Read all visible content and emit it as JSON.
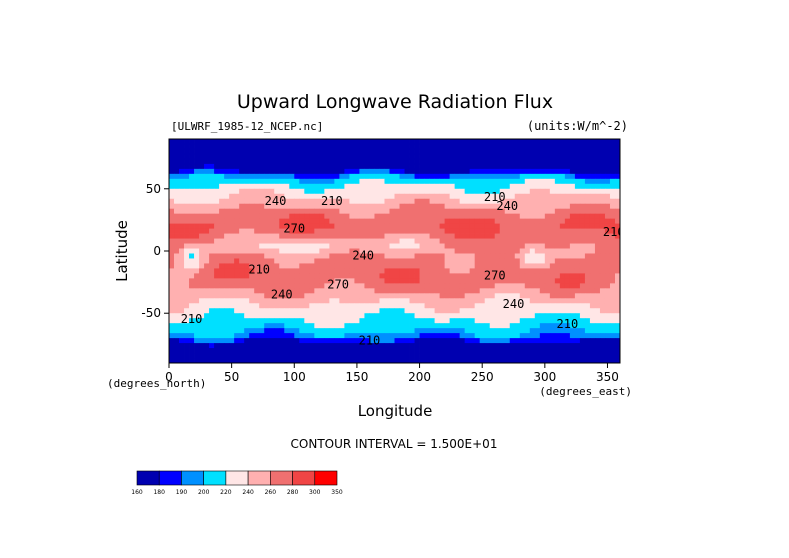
{
  "chart_data": {
    "type": "heatmap",
    "title": "Upward Longwave Radiation Flux",
    "file_label": "[ULWRF_1985-12_NCEP.nc]",
    "units_label": "(units:W/m^-2)",
    "xlabel": "Longitude",
    "ylabel": "Latitude",
    "x_unit_left": "(degrees_north)",
    "x_unit_right": "(degrees_east)",
    "xlim": [
      0,
      360
    ],
    "ylim": [
      -90,
      90
    ],
    "x_ticks": [
      0,
      50,
      100,
      150,
      200,
      250,
      300,
      350
    ],
    "y_ticks": [
      -50,
      0,
      50
    ],
    "contour_interval_text": "CONTOUR INTERVAL = 1.500E+01",
    "colorbar": {
      "levels": [
        "160",
        "180",
        "190",
        "200",
        "220",
        "240",
        "260",
        "280",
        "300",
        "350"
      ],
      "colors": [
        "#0000b0",
        "#0000ff",
        "#0090ff",
        "#00e0ff",
        "#ffe6e6",
        "#ffb0b0",
        "#f07070",
        "#f04545",
        "#ff0000"
      ]
    },
    "contour_labels": [
      {
        "text": "210",
        "lon": 260,
        "lat": 40
      },
      {
        "text": "240",
        "lon": 270,
        "lat": 33
      },
      {
        "text": "270",
        "lon": 100,
        "lat": 15
      },
      {
        "text": "270",
        "lon": 260,
        "lat": -23
      },
      {
        "text": "240",
        "lon": 90,
        "lat": -38
      },
      {
        "text": "240",
        "lon": 275,
        "lat": -46
      },
      {
        "text": "270",
        "lon": 135,
        "lat": -30
      },
      {
        "text": "210",
        "lon": 18,
        "lat": -58
      },
      {
        "text": "210",
        "lon": 160,
        "lat": -75
      },
      {
        "text": "210",
        "lon": 318,
        "lat": -62
      },
      {
        "text": "240",
        "lon": 85,
        "lat": 37
      },
      {
        "text": "210",
        "lon": 130,
        "lat": 37
      },
      {
        "text": "210",
        "lon": 355,
        "lat": 12
      },
      {
        "text": "210",
        "lon": 72,
        "lat": -18
      },
      {
        "text": "240",
        "lon": 155,
        "lat": -7
      }
    ]
  }
}
